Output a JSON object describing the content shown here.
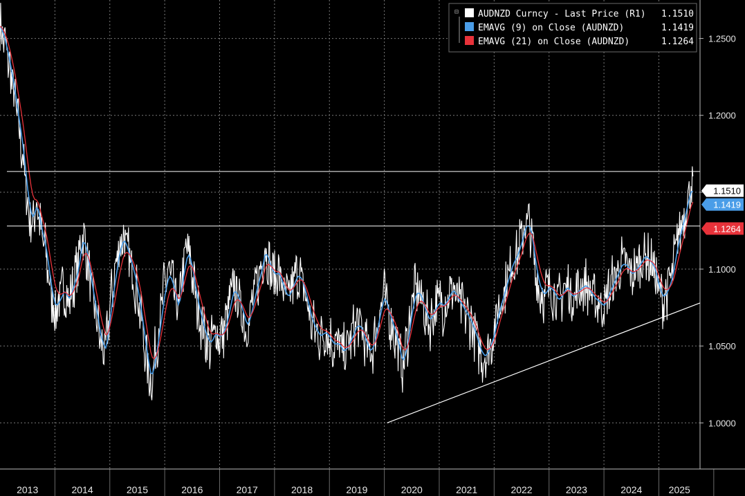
{
  "chart_data": {
    "type": "line",
    "title": "",
    "xlabel": "",
    "ylabel": "",
    "x_range": [
      2013.0,
      2025.75
    ],
    "ylim": [
      0.97,
      1.275
    ],
    "y_ticks": [
      "1.0000",
      "1.0500",
      "1.1000",
      "1.1500",
      "1.2000",
      "1.2500"
    ],
    "y_tick_values": [
      1.0,
      1.05,
      1.1,
      1.15,
      1.2,
      1.25
    ],
    "x_tick_labels": [
      "2013",
      "2014",
      "2015",
      "2016",
      "2017",
      "2018",
      "2019",
      "2020",
      "2021",
      "2022",
      "2023",
      "2024",
      "2025"
    ],
    "grid": true,
    "legend_position": "top-right",
    "series": [
      {
        "name": "AUDNZD Curncy - Last Price (R1)",
        "legend_value": "1.1510",
        "color": "#ffffff",
        "x": [
          2013.0,
          2013.08,
          2013.17,
          2013.25,
          2013.33,
          2013.42,
          2013.5,
          2013.58,
          2013.67,
          2013.75,
          2013.83,
          2013.92,
          2014.0,
          2014.08,
          2014.17,
          2014.25,
          2014.33,
          2014.42,
          2014.5,
          2014.58,
          2014.67,
          2014.75,
          2014.83,
          2014.92,
          2015.0,
          2015.08,
          2015.17,
          2015.25,
          2015.33,
          2015.42,
          2015.5,
          2015.58,
          2015.67,
          2015.75,
          2015.83,
          2015.92,
          2016.0,
          2016.08,
          2016.17,
          2016.25,
          2016.33,
          2016.42,
          2016.5,
          2016.58,
          2016.67,
          2016.75,
          2016.83,
          2016.92,
          2017.0,
          2017.08,
          2017.17,
          2017.25,
          2017.33,
          2017.42,
          2017.5,
          2017.58,
          2017.67,
          2017.75,
          2017.83,
          2017.92,
          2018.0,
          2018.08,
          2018.17,
          2018.25,
          2018.33,
          2018.42,
          2018.5,
          2018.58,
          2018.67,
          2018.75,
          2018.83,
          2018.92,
          2019.0,
          2019.08,
          2019.17,
          2019.25,
          2019.33,
          2019.42,
          2019.5,
          2019.58,
          2019.67,
          2019.75,
          2019.83,
          2019.92,
          2020.0,
          2020.08,
          2020.17,
          2020.25,
          2020.33,
          2020.42,
          2020.5,
          2020.58,
          2020.67,
          2020.75,
          2020.83,
          2020.92,
          2021.0,
          2021.08,
          2021.17,
          2021.25,
          2021.33,
          2021.42,
          2021.5,
          2021.58,
          2021.67,
          2021.75,
          2021.83,
          2021.92,
          2022.0,
          2022.08,
          2022.17,
          2022.25,
          2022.33,
          2022.42,
          2022.5,
          2022.58,
          2022.67,
          2022.75,
          2022.83,
          2022.92,
          2023.0,
          2023.08,
          2023.17,
          2023.25,
          2023.33,
          2023.42,
          2023.5,
          2023.58,
          2023.67,
          2023.75,
          2023.83,
          2023.92,
          2024.0,
          2024.08,
          2024.17,
          2024.25,
          2024.33,
          2024.42,
          2024.5,
          2024.58,
          2024.67,
          2024.75,
          2024.83,
          2024.92,
          2025.0,
          2025.08,
          2025.17,
          2025.25,
          2025.33,
          2025.42,
          2025.5,
          2025.58,
          2025.62
        ],
        "values": [
          1.258,
          1.248,
          1.232,
          1.215,
          1.195,
          1.172,
          1.142,
          1.128,
          1.145,
          1.122,
          1.112,
          1.085,
          1.072,
          1.08,
          1.088,
          1.078,
          1.09,
          1.102,
          1.125,
          1.11,
          1.085,
          1.07,
          1.052,
          1.045,
          1.075,
          1.095,
          1.115,
          1.122,
          1.11,
          1.098,
          1.085,
          1.065,
          1.04,
          1.025,
          1.045,
          1.07,
          1.09,
          1.1,
          1.085,
          1.072,
          1.1,
          1.115,
          1.098,
          1.078,
          1.065,
          1.055,
          1.05,
          1.06,
          1.055,
          1.06,
          1.075,
          1.09,
          1.082,
          1.07,
          1.06,
          1.075,
          1.09,
          1.1,
          1.115,
          1.1,
          1.095,
          1.098,
          1.085,
          1.08,
          1.09,
          1.098,
          1.092,
          1.08,
          1.065,
          1.06,
          1.055,
          1.06,
          1.055,
          1.05,
          1.052,
          1.045,
          1.05,
          1.058,
          1.065,
          1.062,
          1.05,
          1.045,
          1.055,
          1.075,
          1.085,
          1.07,
          1.06,
          1.05,
          1.035,
          1.055,
          1.078,
          1.088,
          1.082,
          1.07,
          1.065,
          1.075,
          1.08,
          1.075,
          1.083,
          1.088,
          1.08,
          1.075,
          1.07,
          1.065,
          1.055,
          1.045,
          1.042,
          1.05,
          1.06,
          1.075,
          1.085,
          1.095,
          1.105,
          1.11,
          1.12,
          1.132,
          1.125,
          1.098,
          1.085,
          1.082,
          1.09,
          1.085,
          1.078,
          1.085,
          1.09,
          1.08,
          1.085,
          1.088,
          1.09,
          1.085,
          1.08,
          1.078,
          1.075,
          1.085,
          1.092,
          1.098,
          1.105,
          1.102,
          1.095,
          1.1,
          1.105,
          1.11,
          1.105,
          1.1,
          1.085,
          1.08,
          1.088,
          1.098,
          1.118,
          1.13,
          1.142,
          1.155,
          1.151
        ],
        "last_tag": "1.1510"
      },
      {
        "name": "EMAVG (9)  on Close (AUDNZD)",
        "legend_value": "1.1419",
        "color": "#4a9de8",
        "smoothing": 9,
        "last_tag": "1.1419"
      },
      {
        "name": "EMAVG (21)  on Close (AUDNZD)",
        "legend_value": "1.1264",
        "color": "#e8323a",
        "smoothing": 21,
        "last_tag": "1.1264"
      }
    ],
    "annotations": {
      "horizontal_lines": [
        1.1635,
        1.128
      ],
      "trendline": {
        "from": [
          2020.05,
          1.0
        ],
        "to": [
          2025.75,
          1.078
        ]
      }
    }
  }
}
